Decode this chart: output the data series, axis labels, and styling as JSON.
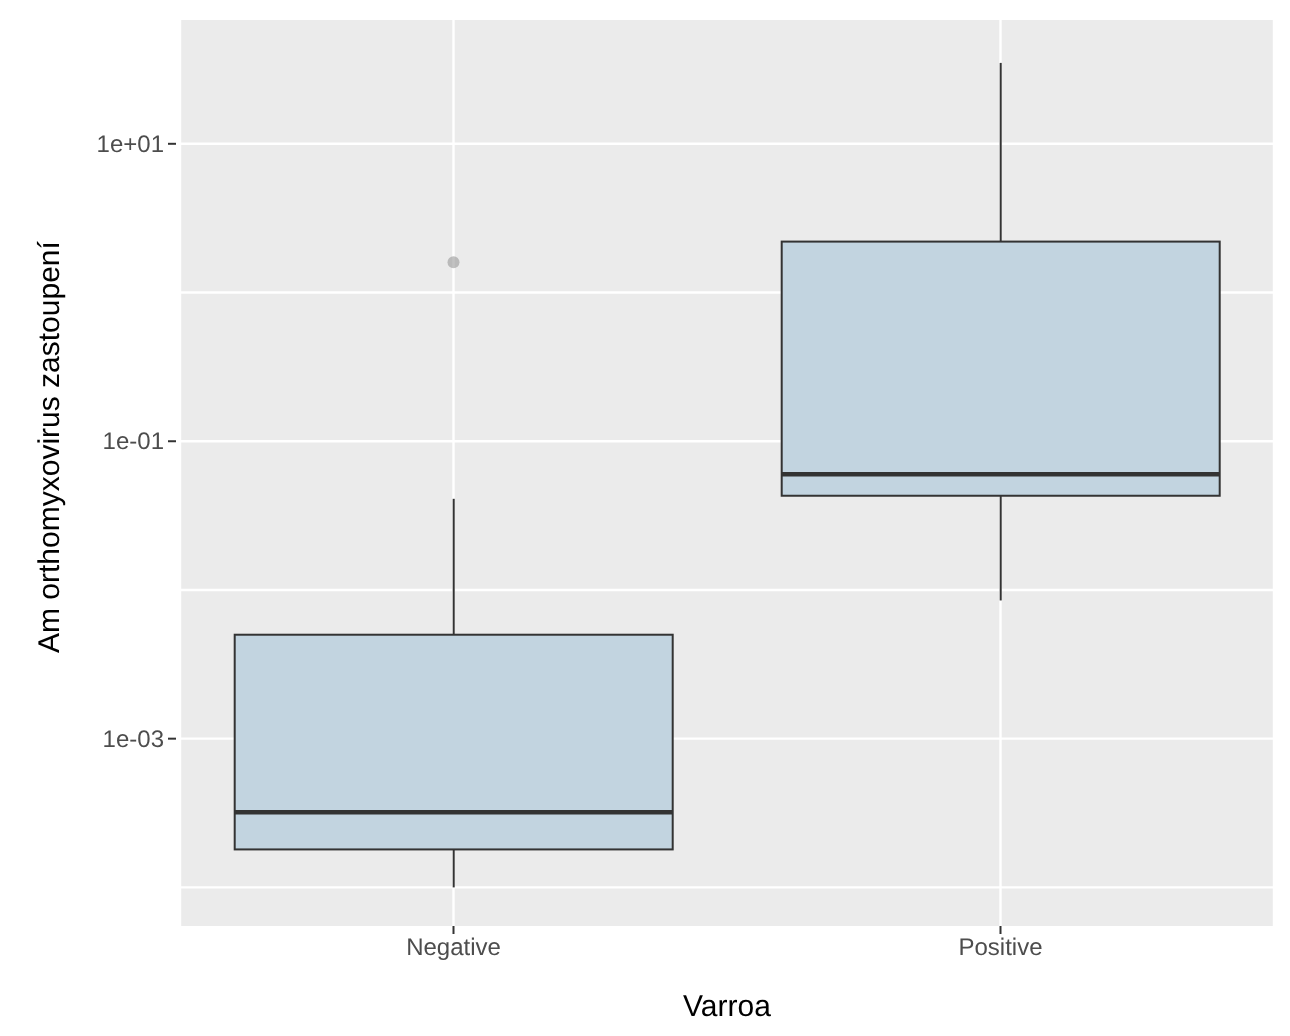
{
  "chart_data": {
    "type": "box",
    "xlabel": "Varroa",
    "ylabel": "Am orthomyxovirus zastoupení",
    "categories": [
      "Negative",
      "Positive"
    ],
    "boxes": [
      {
        "low": 0.0001,
        "q1": 0.00018,
        "median": 0.00032,
        "q3": 0.005,
        "high": 0.041,
        "outliers": [
          1.6
        ]
      },
      {
        "low": 0.0085,
        "q1": 0.043,
        "median": 0.06,
        "q3": 2.2,
        "high": 35
      }
    ],
    "color": "#c2d4e0",
    "log": true,
    "ylim": [
      5.5e-05,
      68
    ],
    "yticks": [
      {
        "value": 0.0001,
        "label": null
      },
      {
        "value": 0.001,
        "label": "1e-03"
      },
      {
        "value": 0.01,
        "label": null
      },
      {
        "value": 0.1,
        "label": "1e-01"
      },
      {
        "value": 1,
        "label": null
      },
      {
        "value": 10,
        "label": "1e+01"
      }
    ],
    "grid": true
  }
}
